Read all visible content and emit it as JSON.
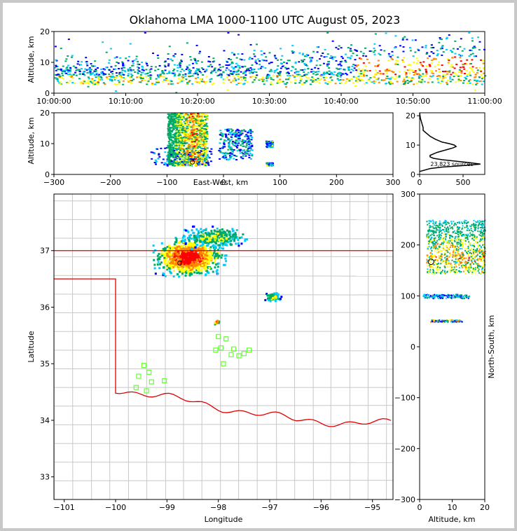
{
  "title": "Oklahoma LMA 1000-1100 UTC August 05, 2023",
  "colors": {
    "density": [
      "#0000ff",
      "#00ccff",
      "#00aa66",
      "#ffff00",
      "#ff8800",
      "#ff0000"
    ],
    "border": "#dd0000",
    "county_lines": "#c8c8c8",
    "stations": "#66ff33",
    "core": "#000000"
  },
  "chart_data": [
    {
      "name": "time-height",
      "type": "heatmap",
      "xlabel": "",
      "ylabel": "Altitude, km",
      "x_ticks": [
        "10:00:00",
        "10:10:00",
        "10:20:00",
        "10:30:00",
        "10:40:00",
        "10:50:00",
        "11:00:00"
      ],
      "x_range": [
        "10:00:00",
        "11:00:00"
      ],
      "ylim": [
        0,
        20
      ],
      "y_ticks": [
        0,
        10,
        20
      ]
    },
    {
      "name": "east-west-altitude",
      "type": "heatmap",
      "xlabel": "East-West, km",
      "ylabel": "Altitude, km",
      "xlim": [
        -300,
        300
      ],
      "x_ticks": [
        -300,
        -200,
        -100,
        0,
        100,
        200,
        300
      ],
      "ylim": [
        0,
        20
      ],
      "y_ticks": [
        0,
        10,
        20
      ]
    },
    {
      "name": "altitude-histogram",
      "type": "line",
      "xlabel": "",
      "ylabel": "",
      "xlim": [
        0,
        750
      ],
      "x_ticks": [
        0,
        500
      ],
      "ylim": [
        0,
        21
      ],
      "y_ticks": [
        0,
        10,
        20
      ],
      "annotation": "23,823 sources",
      "profile": {
        "altitude_km": [
          1.0,
          2.0,
          2.5,
          3.0,
          3.5,
          4.0,
          4.5,
          5.0,
          5.5,
          6.0,
          6.5,
          7.0,
          7.5,
          8.0,
          8.5,
          9.0,
          9.5,
          10.0,
          10.5,
          11.0,
          11.5,
          12.0,
          13.0,
          14.0,
          15.0,
          16.0,
          17.0,
          18.0,
          19.0,
          20.0,
          21.0
        ],
        "count": [
          0,
          120,
          260,
          500,
          700,
          580,
          420,
          260,
          160,
          120,
          120,
          160,
          200,
          260,
          320,
          380,
          420,
          400,
          340,
          260,
          220,
          180,
          120,
          80,
          40,
          40,
          30,
          20,
          10,
          5,
          0
        ]
      }
    },
    {
      "name": "plan-view",
      "type": "scatter",
      "xlabel": "Longitude",
      "ylabel": "Latitude",
      "xlim": [
        -101.2,
        -94.6
      ],
      "ylim": [
        32.6,
        38.0
      ],
      "x_ticks": [
        -101,
        -100,
        -99,
        -98,
        -97,
        -96,
        -95
      ],
      "y_ticks": [
        33,
        34,
        35,
        36,
        37
      ],
      "stations": {
        "lon": [
          -99.45,
          -99.55,
          -99.35,
          -99.3,
          -99.6,
          -99.4,
          -99.05,
          -98.0,
          -97.85,
          -98.05,
          -97.95,
          -97.75,
          -97.7,
          -97.5,
          -97.4,
          -97.6,
          -97.9
        ],
        "lat": [
          34.97,
          34.78,
          34.85,
          34.68,
          34.58,
          34.52,
          34.7,
          35.48,
          35.44,
          35.24,
          35.28,
          35.16,
          35.26,
          35.18,
          35.24,
          35.14,
          35.0
        ]
      }
    },
    {
      "name": "altitude-north-south",
      "type": "heatmap",
      "xlabel": "Altitude, km",
      "ylabel": "North-South, km",
      "xlim": [
        0,
        20
      ],
      "x_ticks": [
        0,
        10,
        20
      ],
      "ylim": [
        -300,
        300
      ],
      "y_ticks": [
        -300,
        -200,
        -100,
        0,
        100,
        200,
        300
      ]
    }
  ]
}
